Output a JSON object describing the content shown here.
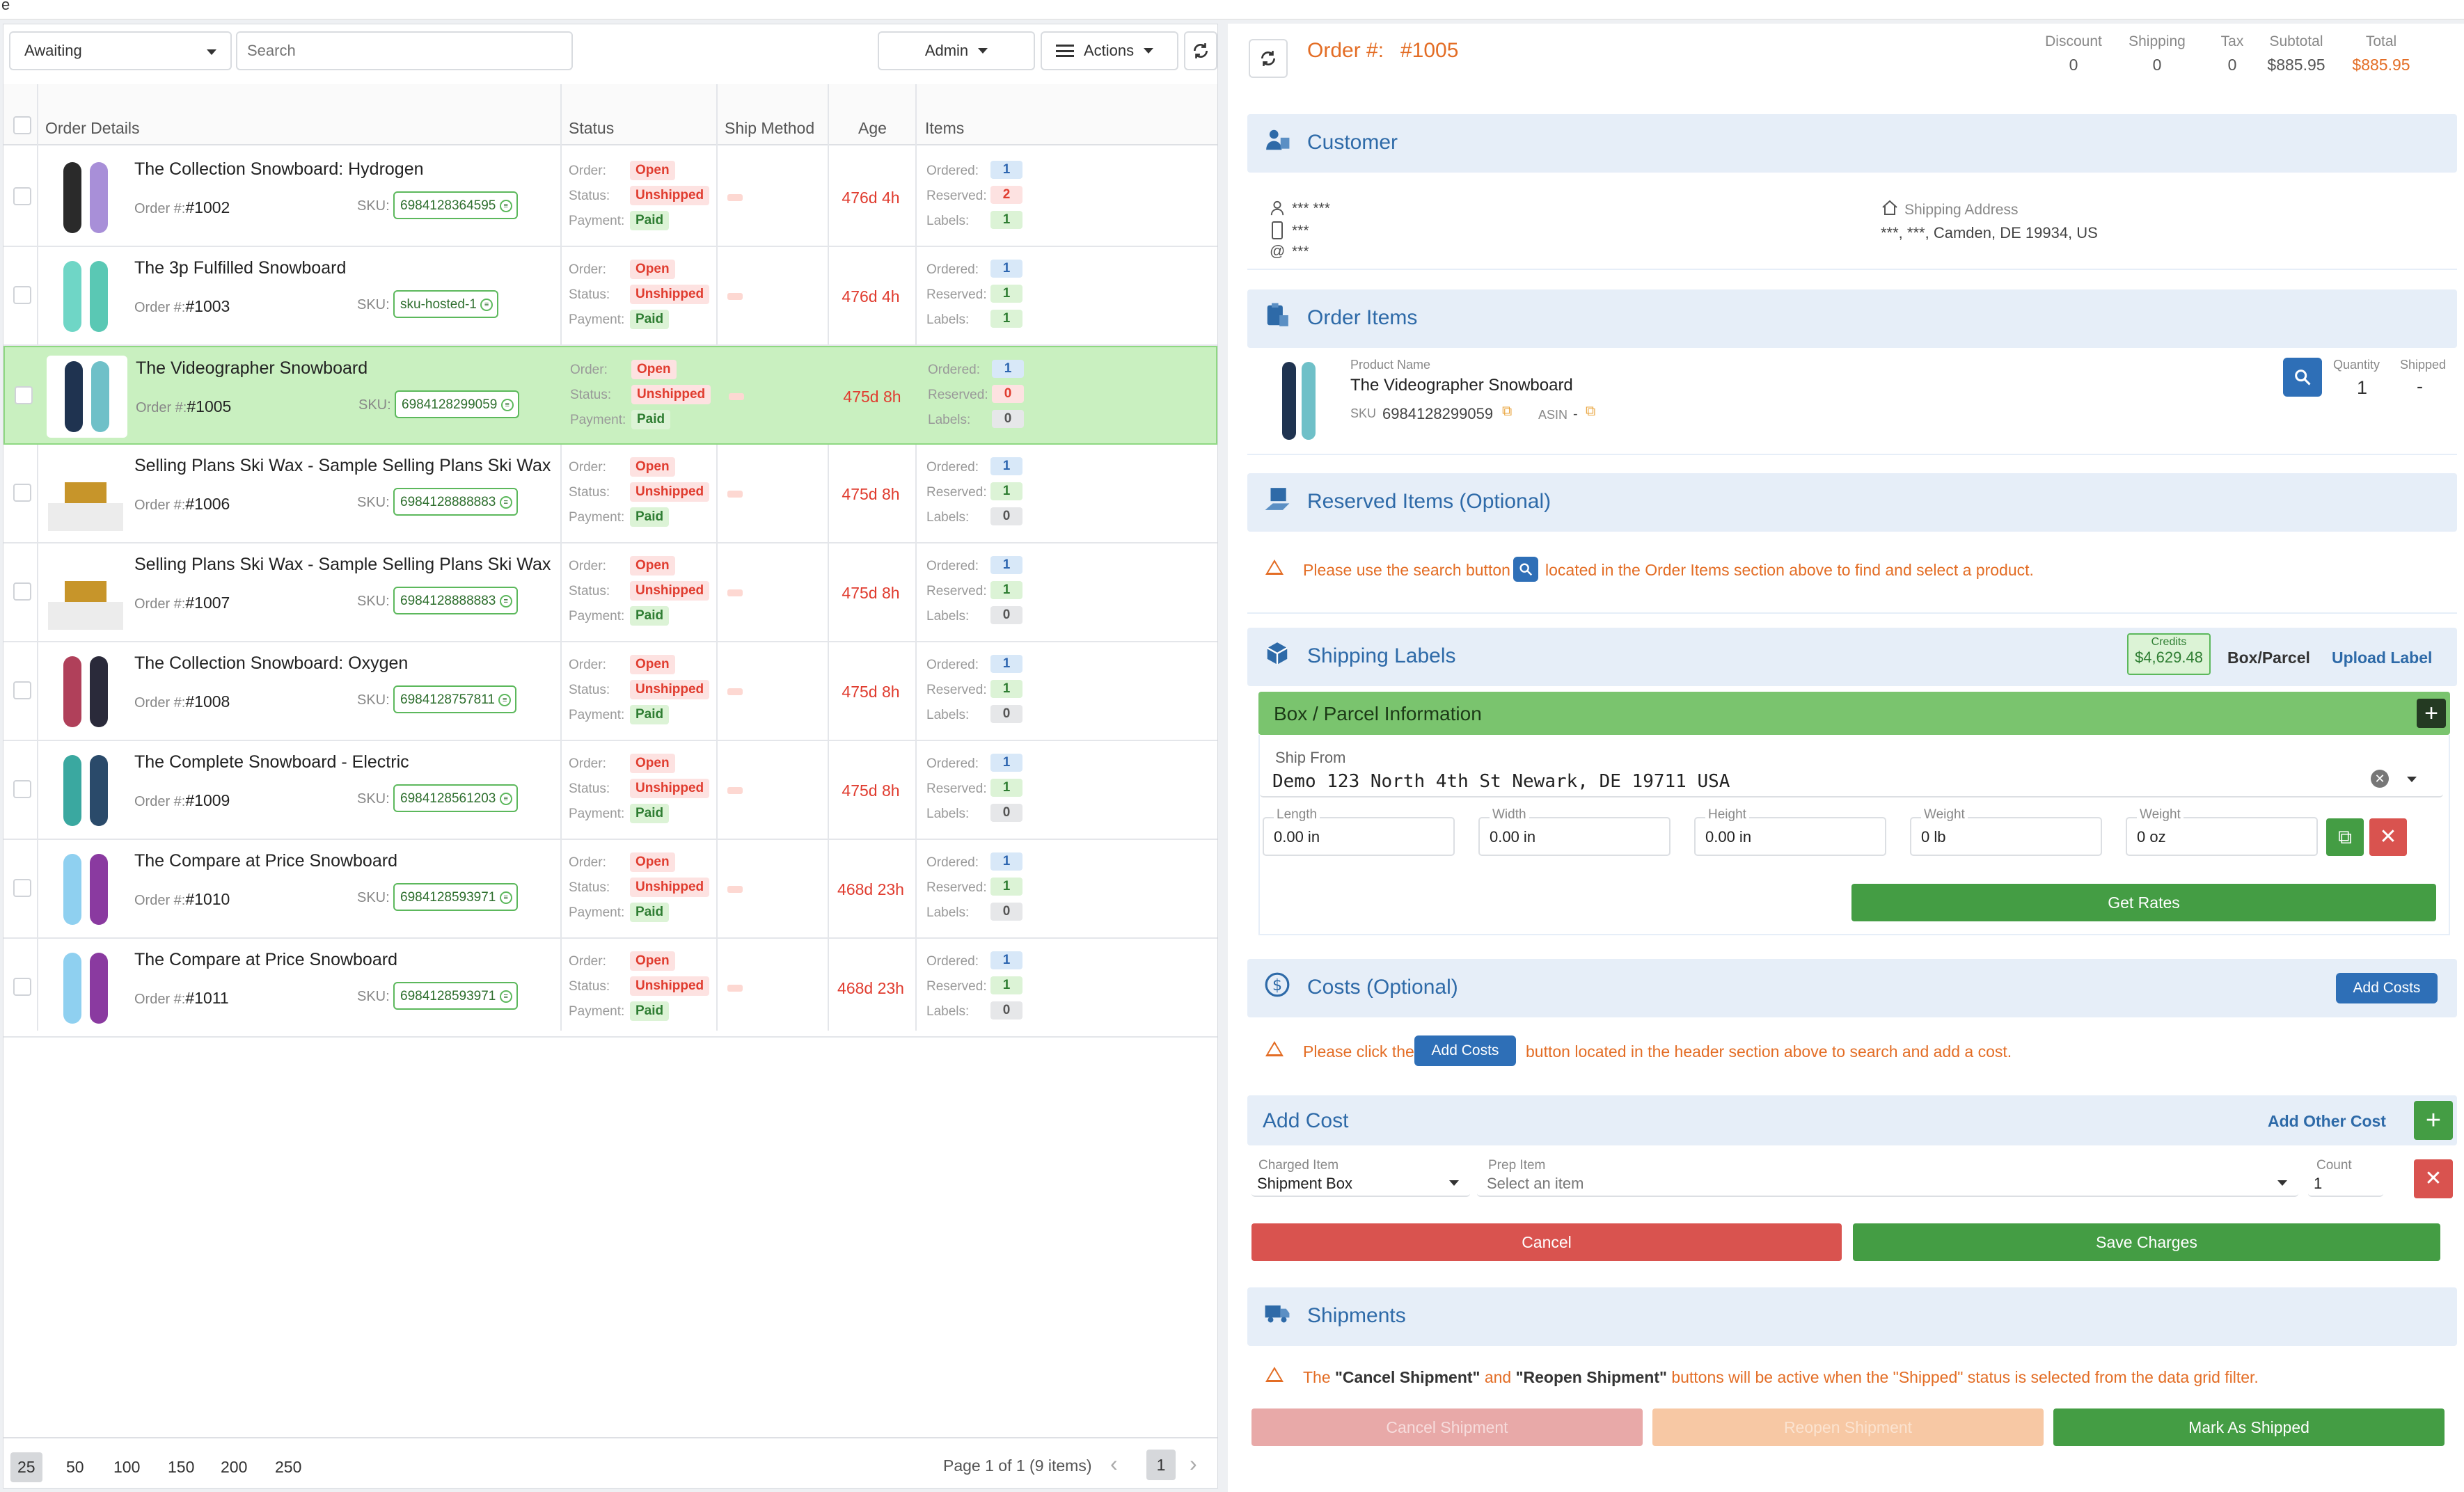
{
  "corner_mark": "e",
  "filters": {
    "status_value": "Awaiting",
    "search_placeholder": "Search",
    "user_value": "Admin",
    "actions_label": "Actions"
  },
  "grid": {
    "headers": {
      "order_details": "Order Details",
      "status": "Status",
      "ship_method": "Ship Method",
      "age": "Age",
      "items": "Items"
    },
    "labels": {
      "order_num": "Order #:",
      "sku": "SKU:",
      "order": "Order:",
      "status": "Status:",
      "payment": "Payment:",
      "ordered": "Ordered:",
      "reserved": "Reserved:",
      "labels": "Labels:"
    },
    "rows": [
      {
        "title": "The Collection Snowboard: Hydrogen",
        "order_no": "#1002",
        "sku": "6984128364595",
        "order_status": "Open",
        "ship_status": "Unshipped",
        "payment": "Paid",
        "age": "476d 4h",
        "ordered": "1",
        "reserved": "2",
        "labels_count": "1",
        "colors": [
          "#2a2a2a",
          "#a88fd8"
        ]
      },
      {
        "title": "The 3p Fulfilled Snowboard",
        "order_no": "#1003",
        "sku": "sku-hosted-1",
        "order_status": "Open",
        "ship_status": "Unshipped",
        "payment": "Paid",
        "age": "476d 4h",
        "ordered": "1",
        "reserved": "1",
        "labels_count": "1",
        "colors": [
          "#6fd6c6",
          "#5ac8b4"
        ]
      },
      {
        "title": "The Videographer Snowboard",
        "order_no": "#1005",
        "sku": "6984128299059",
        "order_status": "Open",
        "ship_status": "Unshipped",
        "payment": "Paid",
        "age": "475d 8h",
        "ordered": "1",
        "reserved": "0",
        "labels_count": "0",
        "colors": [
          "#1f3350",
          "#6fc0c8"
        ]
      },
      {
        "title": "Selling Plans Ski Wax - Sample Selling Plans Ski Wax",
        "order_no": "#1006",
        "sku": "6984128888883",
        "order_status": "Open",
        "ship_status": "Unshipped",
        "payment": "Paid",
        "age": "475d 8h",
        "ordered": "1",
        "reserved": "1",
        "labels_count": "0",
        "colors": [
          "#c7952a",
          "#c7952a"
        ]
      },
      {
        "title": "Selling Plans Ski Wax - Sample Selling Plans Ski Wax",
        "order_no": "#1007",
        "sku": "6984128888883",
        "order_status": "Open",
        "ship_status": "Unshipped",
        "payment": "Paid",
        "age": "475d 8h",
        "ordered": "1",
        "reserved": "1",
        "labels_count": "0",
        "colors": [
          "#c7952a",
          "#c7952a"
        ]
      },
      {
        "title": "The Collection Snowboard: Oxygen",
        "order_no": "#1008",
        "sku": "6984128757811",
        "order_status": "Open",
        "ship_status": "Unshipped",
        "payment": "Paid",
        "age": "475d 8h",
        "ordered": "1",
        "reserved": "1",
        "labels_count": "0",
        "colors": [
          "#b0405a",
          "#2a2a3a"
        ]
      },
      {
        "title": "The Complete Snowboard - Electric",
        "order_no": "#1009",
        "sku": "6984128561203",
        "order_status": "Open",
        "ship_status": "Unshipped",
        "payment": "Paid",
        "age": "475d 8h",
        "ordered": "1",
        "reserved": "1",
        "labels_count": "0",
        "colors": [
          "#3aa8a0",
          "#2a4a6a"
        ]
      },
      {
        "title": "The Compare at Price Snowboard",
        "order_no": "#1010",
        "sku": "6984128593971",
        "order_status": "Open",
        "ship_status": "Unshipped",
        "payment": "Paid",
        "age": "468d 23h",
        "ordered": "1",
        "reserved": "1",
        "labels_count": "0",
        "colors": [
          "#8fd0f0",
          "#8a3aa0"
        ]
      },
      {
        "title": "The Compare at Price Snowboard",
        "order_no": "#1011",
        "sku": "6984128593971",
        "order_status": "Open",
        "ship_status": "Unshipped",
        "payment": "Paid",
        "age": "468d 23h",
        "ordered": "1",
        "reserved": "1",
        "labels_count": "0",
        "colors": [
          "#8fd0f0",
          "#8a3aa0"
        ]
      }
    ]
  },
  "pager": {
    "sizes": [
      "25",
      "50",
      "100",
      "150",
      "200",
      "250"
    ],
    "info": "Page 1 of 1 (9 items)",
    "current": "1"
  },
  "order": {
    "label": "Order #:",
    "number": "#1005",
    "totals": [
      {
        "label": "Discount",
        "value": "0"
      },
      {
        "label": "Shipping",
        "value": "0"
      },
      {
        "label": "Tax",
        "value": "0"
      },
      {
        "label": "Subtotal",
        "value": "$885.95"
      },
      {
        "label": "Total",
        "value": "$885.95"
      }
    ]
  },
  "customer": {
    "title": "Customer",
    "name": "*** ***",
    "phone": "***",
    "email": "***",
    "address_label": "Shipping Address",
    "address": "***, ***, Camden, DE 19934, US"
  },
  "order_items": {
    "title": "Order Items",
    "product_label": "Product Name",
    "product_name": "The Videographer Snowboard",
    "sku_label": "SKU",
    "sku": "6984128299059",
    "asin_label": "ASIN",
    "asin": "-",
    "qty_label": "Quantity",
    "qty": "1",
    "shipped_label": "Shipped",
    "shipped": "-"
  },
  "reserved": {
    "title": "Reserved Items (Optional)",
    "warn_a": "Please use the search button",
    "warn_b": "located in the Order Items section above to find and select a product."
  },
  "shipping": {
    "title": "Shipping Labels",
    "credits_label": "Credits",
    "credits": "$4,629.48",
    "box_parcel": "Box/Parcel",
    "upload": "Upload Label",
    "box_title": "Box / Parcel Information",
    "ship_from_label": "Ship From",
    "ship_from": "Demo 123 North 4th St  Newark, DE 19711 USA",
    "dims": [
      {
        "label": "Length",
        "value": "0.00 in"
      },
      {
        "label": "Width",
        "value": "0.00 in"
      },
      {
        "label": "Height",
        "value": "0.00 in"
      },
      {
        "label": "Weight",
        "value": "0 lb"
      },
      {
        "label": "Weight",
        "value": "0 oz"
      }
    ],
    "get_rates": "Get Rates"
  },
  "costs": {
    "title": "Costs (Optional)",
    "add_costs": "Add Costs",
    "warn_a": "Please click the",
    "warn_btn": "Add Costs",
    "warn_b": "button located in the header section above to search and add a cost.",
    "add_cost_title": "Add Cost",
    "add_other": "Add Other Cost",
    "charged_label": "Charged Item",
    "charged_value": "Shipment Box",
    "prep_label": "Prep Item",
    "prep_placeholder": "Select an item",
    "count_label": "Count",
    "count_value": "1",
    "cancel": "Cancel",
    "save": "Save Charges"
  },
  "shipments": {
    "title": "Shipments",
    "warn_a": "The",
    "warn_b": "\"Cancel Shipment\"",
    "warn_c": "and",
    "warn_d": "\"Reopen Shipment\"",
    "warn_e": "buttons will be active when the \"Shipped\" status is selected from the data grid filter.",
    "cancel": "Cancel Shipment",
    "reopen": "Reopen Shipment",
    "mark": "Mark As Shipped"
  },
  "colors": {
    "accent_orange": "#e36d25",
    "section_blue": "#2e6aa8",
    "green": "#449d44",
    "red": "#d9534f"
  }
}
